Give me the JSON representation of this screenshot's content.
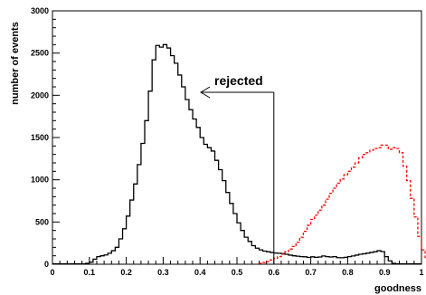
{
  "chart_data": {
    "type": "line",
    "xlabel": "goodness",
    "ylabel": "number of events",
    "xlim": [
      0,
      1
    ],
    "ylim": [
      0,
      3000
    ],
    "x_ticks": [
      "0",
      "0.1",
      "0.2",
      "0.3",
      "0.4",
      "0.5",
      "0.6",
      "0.7",
      "0.8",
      "0.9",
      "1"
    ],
    "y_ticks": [
      "0",
      "500",
      "1000",
      "1500",
      "2000",
      "2500",
      "3000"
    ],
    "grid": false,
    "bin_width": 0.01,
    "annotation": {
      "text": "rejected",
      "cut_x": 0.6
    },
    "series": [
      {
        "color": "#000000",
        "style": "solid",
        "bin_start": 0.0,
        "values": [
          5,
          5,
          5,
          5,
          5,
          5,
          5,
          5,
          5,
          10,
          25,
          60,
          90,
          100,
          110,
          130,
          160,
          200,
          300,
          420,
          570,
          760,
          950,
          1180,
          1430,
          1700,
          2050,
          2420,
          2590,
          2570,
          2600,
          2560,
          2470,
          2380,
          2240,
          2100,
          1950,
          1830,
          1720,
          1620,
          1500,
          1420,
          1380,
          1340,
          1230,
          1120,
          990,
          850,
          720,
          600,
          490,
          400,
          320,
          270,
          220,
          190,
          170,
          155,
          148,
          140,
          133,
          130,
          125,
          118,
          108,
          100,
          95,
          90,
          88,
          80,
          88,
          82,
          86,
          98,
          90,
          86,
          90,
          78,
          76,
          82,
          90,
          98,
          108,
          118,
          124,
          132,
          140,
          148,
          160,
          150,
          90,
          40,
          10,
          5,
          5,
          5,
          5,
          5,
          5,
          5
        ]
      },
      {
        "color": "#ff0000",
        "style": "dashed",
        "bin_start": 0.56,
        "values": [
          10,
          20,
          30,
          50,
          70,
          90,
          120,
          150,
          180,
          210,
          260,
          320,
          390,
          460,
          530,
          580,
          640,
          700,
          770,
          840,
          900,
          960,
          1010,
          1060,
          1100,
          1150,
          1200,
          1260,
          1300,
          1320,
          1350,
          1370,
          1380,
          1410,
          1410,
          1360,
          1380,
          1370,
          1320,
          1160,
          990,
          780,
          560,
          330,
          170,
          70,
          20,
          5,
          5,
          5
        ]
      }
    ]
  }
}
